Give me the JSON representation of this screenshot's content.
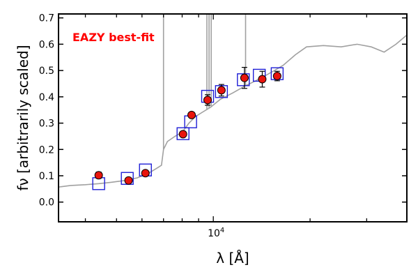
{
  "chart_data": {
    "type": "scatter",
    "annotation": "EAZY best-fit",
    "xlabel": "λ [Å]",
    "ylabel": "fν [arbitrarily scaled]",
    "x_scale": "log",
    "xlim": [
      3300,
      40000
    ],
    "ylim": [
      -0.075,
      0.715
    ],
    "y_ticks": [
      0.0,
      0.1,
      0.2,
      0.3,
      0.4,
      0.5,
      0.6,
      0.7
    ],
    "y_tick_labels": [
      "0.0",
      "0.1",
      "0.2",
      "0.3",
      "0.4",
      "0.5",
      "0.6",
      "0.7"
    ],
    "x_tick_labels": [
      {
        "value": 10000,
        "label": "10^4"
      }
    ],
    "grid": false,
    "colors": {
      "observed": "#e8140d",
      "model_photometry": "#1f1fd6",
      "template": "#a0a0a0",
      "annotation": "#ff0000"
    },
    "series": [
      {
        "role": "observed",
        "marker": "circle",
        "points": [
          {
            "x": 4400,
            "y": 0.102,
            "err": 0.012
          },
          {
            "x": 5450,
            "y": 0.082,
            "err": 0.006
          },
          {
            "x": 6150,
            "y": 0.11,
            "err": 0.006
          },
          {
            "x": 8050,
            "y": 0.258,
            "err": 0.008
          },
          {
            "x": 8560,
            "y": 0.331,
            "err": 0.007
          },
          {
            "x": 9600,
            "y": 0.388,
            "err": 0.02
          },
          {
            "x": 10600,
            "y": 0.425,
            "err": 0.022
          },
          {
            "x": 12500,
            "y": 0.472,
            "err": 0.04
          },
          {
            "x": 14200,
            "y": 0.467,
            "err": 0.03
          },
          {
            "x": 15800,
            "y": 0.479,
            "err": 0.018
          }
        ]
      },
      {
        "role": "model_photometry",
        "marker": "square",
        "points": [
          {
            "x": 4400,
            "y": 0.07
          },
          {
            "x": 5400,
            "y": 0.09
          },
          {
            "x": 6150,
            "y": 0.122
          },
          {
            "x": 8050,
            "y": 0.26
          },
          {
            "x": 8500,
            "y": 0.305
          },
          {
            "x": 9600,
            "y": 0.402
          },
          {
            "x": 10600,
            "y": 0.42
          },
          {
            "x": 12400,
            "y": 0.465
          },
          {
            "x": 13900,
            "y": 0.482
          },
          {
            "x": 15800,
            "y": 0.488
          }
        ]
      },
      {
        "role": "template",
        "marker": "line",
        "points": [
          {
            "x": 3300,
            "y": 0.057
          },
          {
            "x": 3600,
            "y": 0.063
          },
          {
            "x": 4000,
            "y": 0.066
          },
          {
            "x": 4400,
            "y": 0.07
          },
          {
            "x": 4800,
            "y": 0.075
          },
          {
            "x": 5300,
            "y": 0.082
          },
          {
            "x": 5800,
            "y": 0.092
          },
          {
            "x": 6300,
            "y": 0.11
          },
          {
            "x": 6700,
            "y": 0.13
          },
          {
            "x": 6900,
            "y": 0.14
          },
          {
            "x": 7000,
            "y": 0.2
          },
          {
            "x": 7200,
            "y": 0.23
          },
          {
            "x": 7600,
            "y": 0.25
          },
          {
            "x": 8000,
            "y": 0.265
          },
          {
            "x": 8400,
            "y": 0.3
          },
          {
            "x": 8800,
            "y": 0.325
          },
          {
            "x": 9200,
            "y": 0.34
          },
          {
            "x": 9800,
            "y": 0.36
          },
          {
            "x": 10500,
            "y": 0.39
          },
          {
            "x": 11500,
            "y": 0.415
          },
          {
            "x": 12500,
            "y": 0.44
          },
          {
            "x": 13500,
            "y": 0.46
          },
          {
            "x": 14500,
            "y": 0.48
          },
          {
            "x": 15500,
            "y": 0.5
          },
          {
            "x": 16500,
            "y": 0.52
          },
          {
            "x": 18000,
            "y": 0.56
          },
          {
            "x": 19500,
            "y": 0.59
          },
          {
            "x": 22000,
            "y": 0.595
          },
          {
            "x": 25000,
            "y": 0.59
          },
          {
            "x": 28000,
            "y": 0.6
          },
          {
            "x": 31000,
            "y": 0.59
          },
          {
            "x": 34000,
            "y": 0.57
          },
          {
            "x": 37000,
            "y": 0.6
          },
          {
            "x": 40000,
            "y": 0.635
          }
        ],
        "emission_lines": [
          {
            "x": 7000,
            "peak": 0.72
          },
          {
            "x": 9550,
            "peak": 0.72
          },
          {
            "x": 9700,
            "peak": 0.72
          },
          {
            "x": 9850,
            "peak": 0.72
          },
          {
            "x": 12600,
            "peak": 0.72
          }
        ]
      }
    ]
  }
}
